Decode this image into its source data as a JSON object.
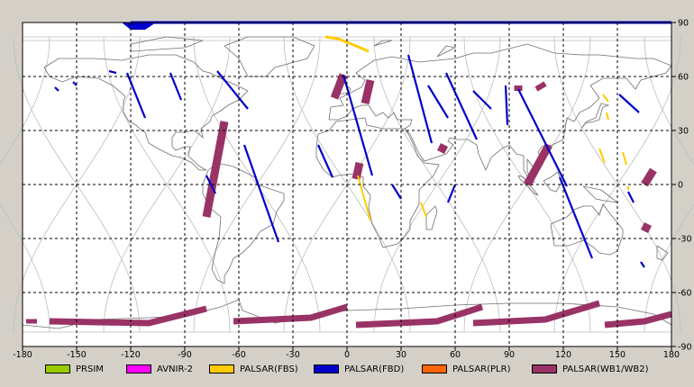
{
  "map": {
    "lon_ticks": [
      "-180",
      "-150",
      "-120",
      "-90",
      "-60",
      "-30",
      "0",
      "30",
      "60",
      "90",
      "120",
      "150",
      "180"
    ],
    "lat_ticks": [
      "90",
      "60",
      "30",
      "0",
      "-30",
      "-60",
      "-90"
    ]
  },
  "legend": [
    {
      "label": "PRSIM",
      "color": "#99cc00"
    },
    {
      "label": "AVNIR-2",
      "color": "#ff00ff"
    },
    {
      "label": "PALSAR(FBS)",
      "color": "#ffcc00"
    },
    {
      "label": "PALSAR(FBD)",
      "color": "#0000cc"
    },
    {
      "label": "PALSAR(PLR)",
      "color": "#ff6600"
    },
    {
      "label": "PALSAR(WB1/WB2)",
      "color": "#993366"
    }
  ]
}
